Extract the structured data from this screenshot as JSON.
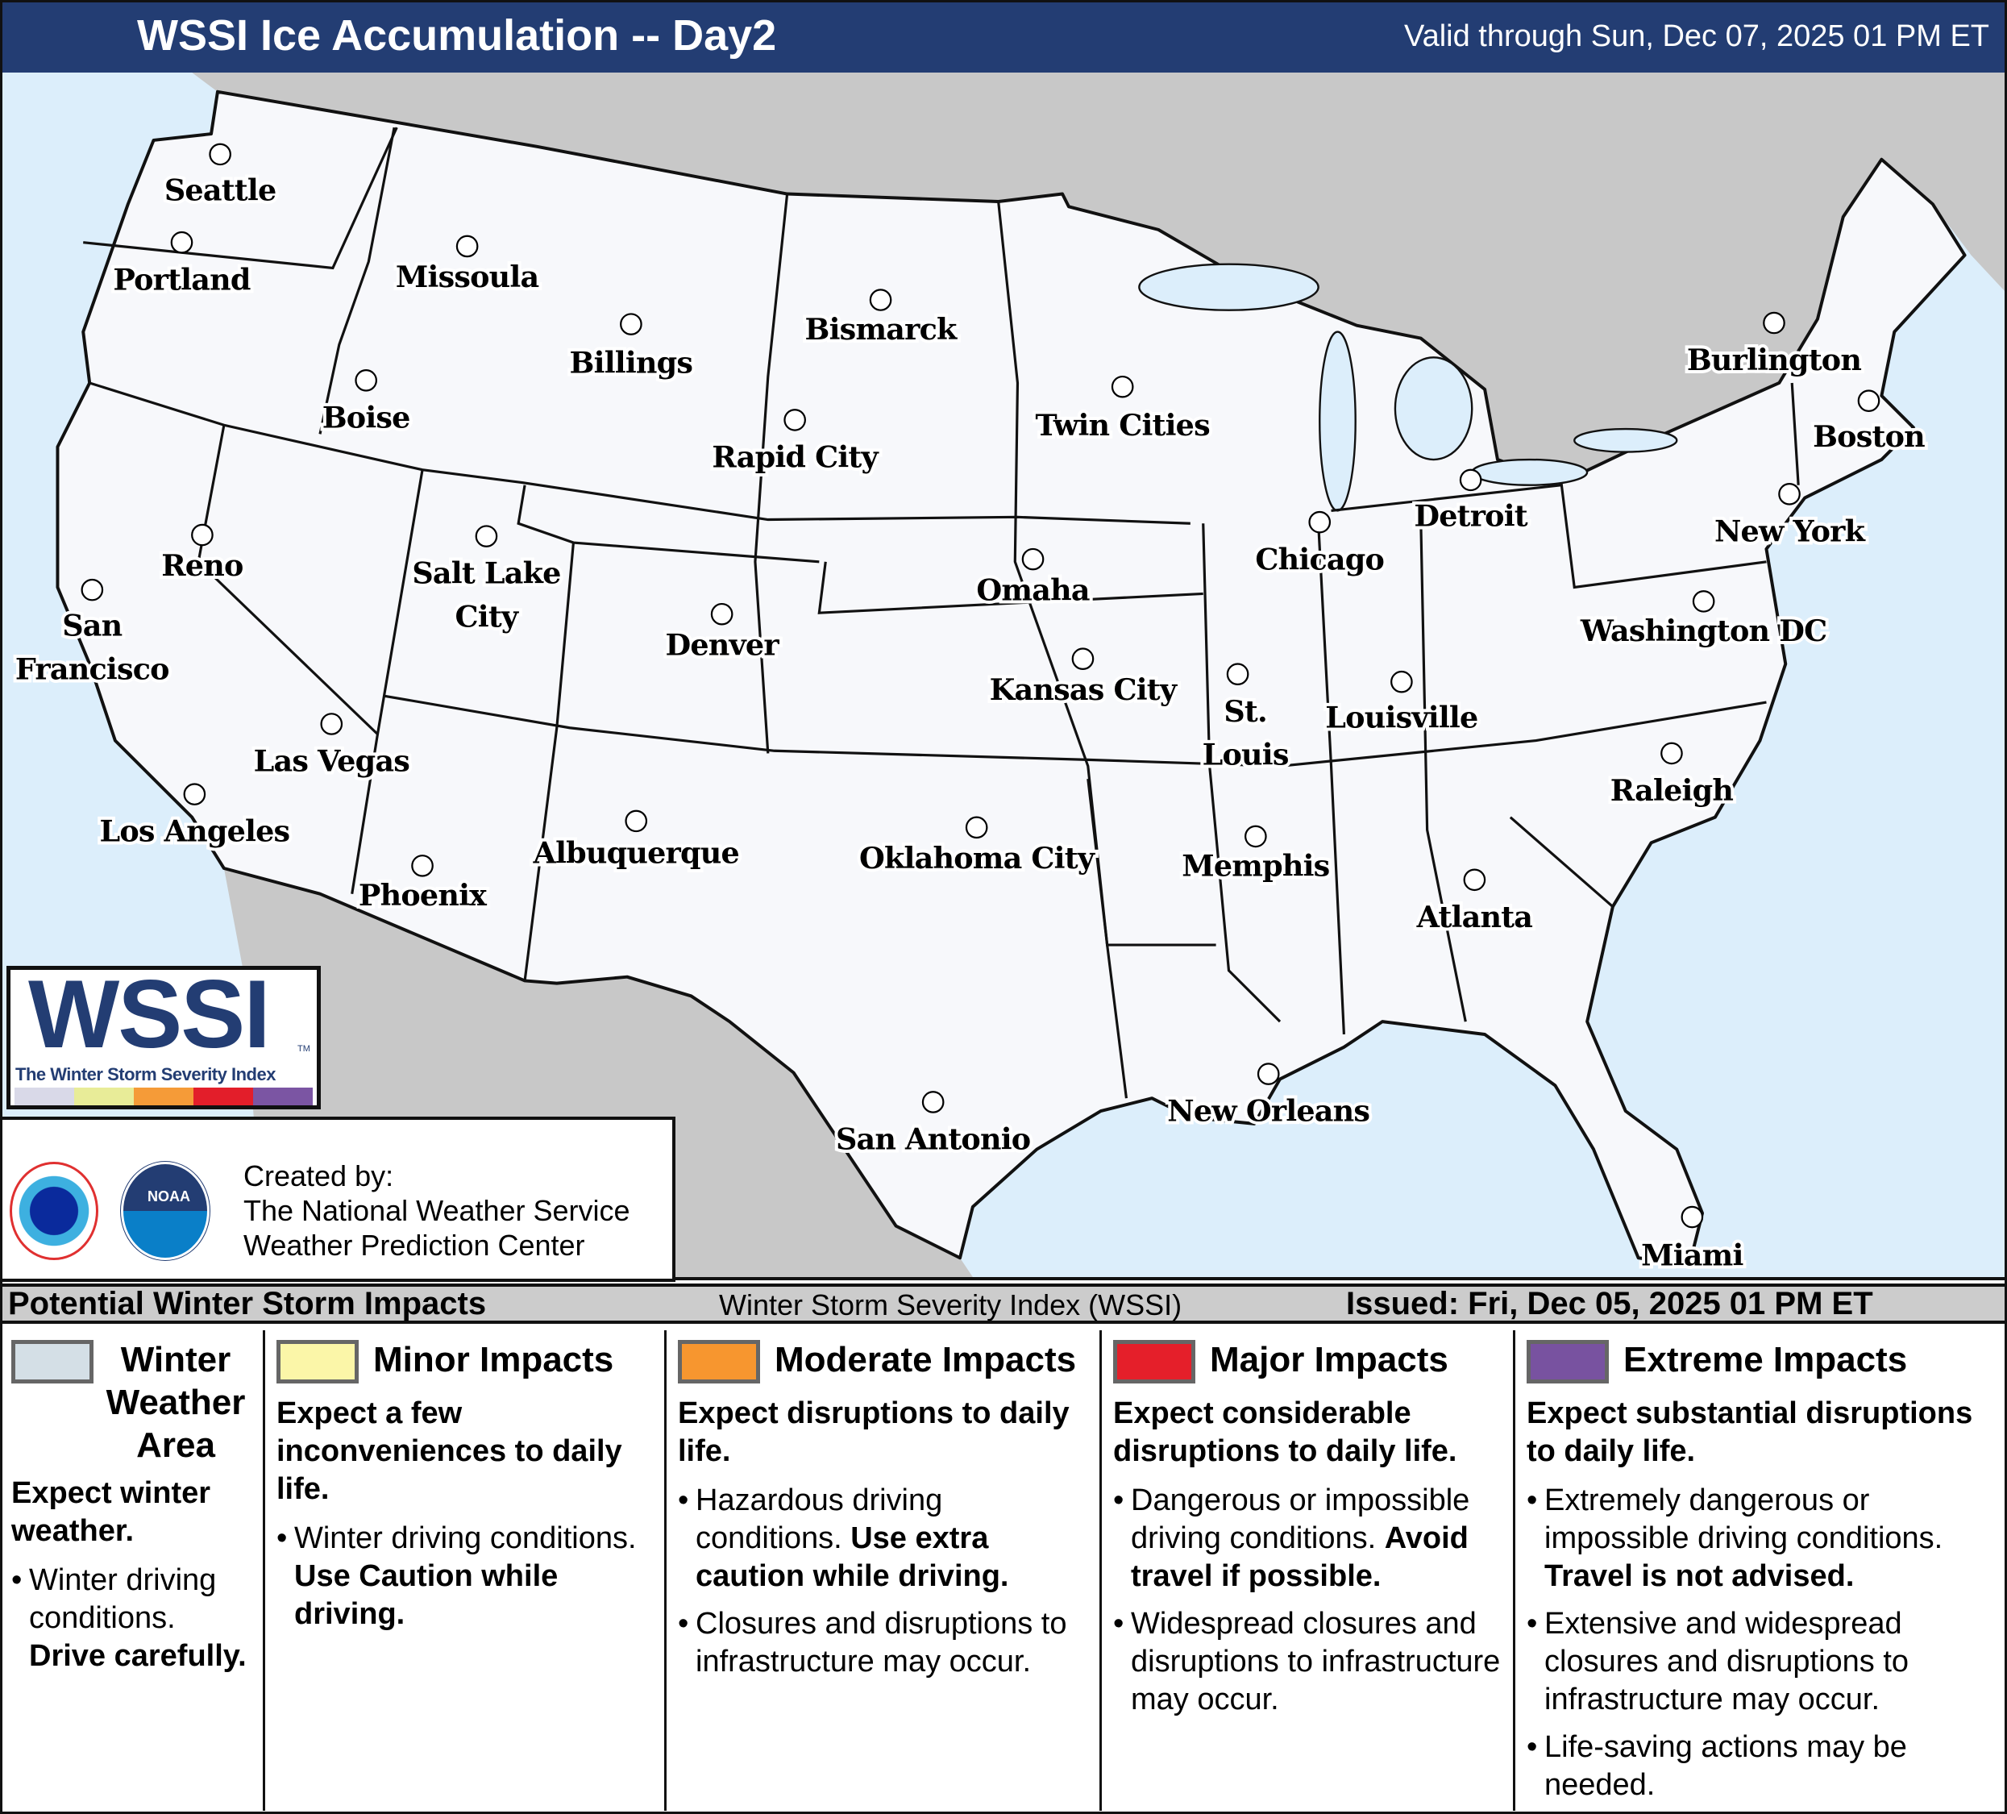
{
  "header": {
    "title": "WSSI Ice Accumulation -- Day2",
    "valid": "Valid through Sun, Dec 07, 2025 01 PM ET"
  },
  "map": {
    "colors": {
      "ocean": "#dceefb",
      "land": "#f7f8fb",
      "neighbor": "#c8c8c8",
      "border": "#111111"
    },
    "cities": [
      "Seattle",
      "Portland",
      "Missoula",
      "Billings",
      "Bismarck",
      "Boise",
      "Rapid City",
      "Twin Cities",
      "Burlington",
      "Boston",
      "Reno",
      "Salt Lake City",
      "Detroit",
      "New York",
      "Chicago",
      "Omaha",
      "Denver",
      "San Francisco",
      "Washington DC",
      "Kansas City",
      "St. Louis",
      "Louisville",
      "Las Vegas",
      "Raleigh",
      "Los Angeles",
      "Albuquerque",
      "Oklahoma City",
      "Memphis",
      "Phoenix",
      "Atlanta",
      "New Orleans",
      "San Antonio",
      "Miami"
    ]
  },
  "logo": {
    "text": "WSSI",
    "tm": "TM",
    "subtitle": "The Winter Storm Severity Index",
    "colors": [
      "#d9d9e8",
      "#e8ec98",
      "#f59b38",
      "#e31e2a",
      "#7b55a3"
    ]
  },
  "credit": {
    "line1": "Created by:",
    "line2": "The National Weather Service",
    "line3": "Weather Prediction Center",
    "nws_logo": "NATIONAL WEATHER SERVICE",
    "noaa_logo": "NOAA"
  },
  "bar": {
    "left": "Potential Winter Storm Impacts",
    "middle": "Winter Storm Severity Index (WSSI)",
    "right": "Issued: Fri, Dec 05, 2025 01 PM ET"
  },
  "legend": [
    {
      "title": "Winter Weather Area",
      "color": "#d4dfe6",
      "sub": "Expect winter weather.",
      "bullets": [
        [
          "Winter driving conditions. ",
          "Drive carefully."
        ]
      ]
    },
    {
      "title": "Minor Impacts",
      "color": "#fbf6a8",
      "sub": "Expect a few inconveniences to daily life.",
      "bullets": [
        [
          "Winter driving conditions. ",
          "Use Caution while driving."
        ]
      ]
    },
    {
      "title": "Moderate Impacts",
      "color": "#f7962f",
      "sub": "Expect disruptions to daily life.",
      "bullets": [
        [
          "Hazardous driving conditions. ",
          "Use extra caution while driving."
        ],
        [
          "Closures and disruptions to infrastructure may occur.",
          ""
        ]
      ]
    },
    {
      "title": "Major Impacts",
      "color": "#e51f2a",
      "sub": "Expect considerable disruptions to daily life.",
      "bullets": [
        [
          "Dangerous or impossible driving conditions. ",
          "Avoid travel if possible."
        ],
        [
          "Widespread closures and disruptions to infrastructure may occur.",
          ""
        ]
      ]
    },
    {
      "title": "Extreme Impacts",
      "color": "#7852a0",
      "sub": "Expect substantial disruptions to daily life.",
      "bullets": [
        [
          "Extremely dangerous or impossible driving conditions. ",
          "Travel is not advised."
        ],
        [
          "Extensive and widespread closures and disruptions to infrastructure may occur.",
          ""
        ],
        [
          "Life-saving actions may be needed.",
          ""
        ]
      ]
    }
  ]
}
